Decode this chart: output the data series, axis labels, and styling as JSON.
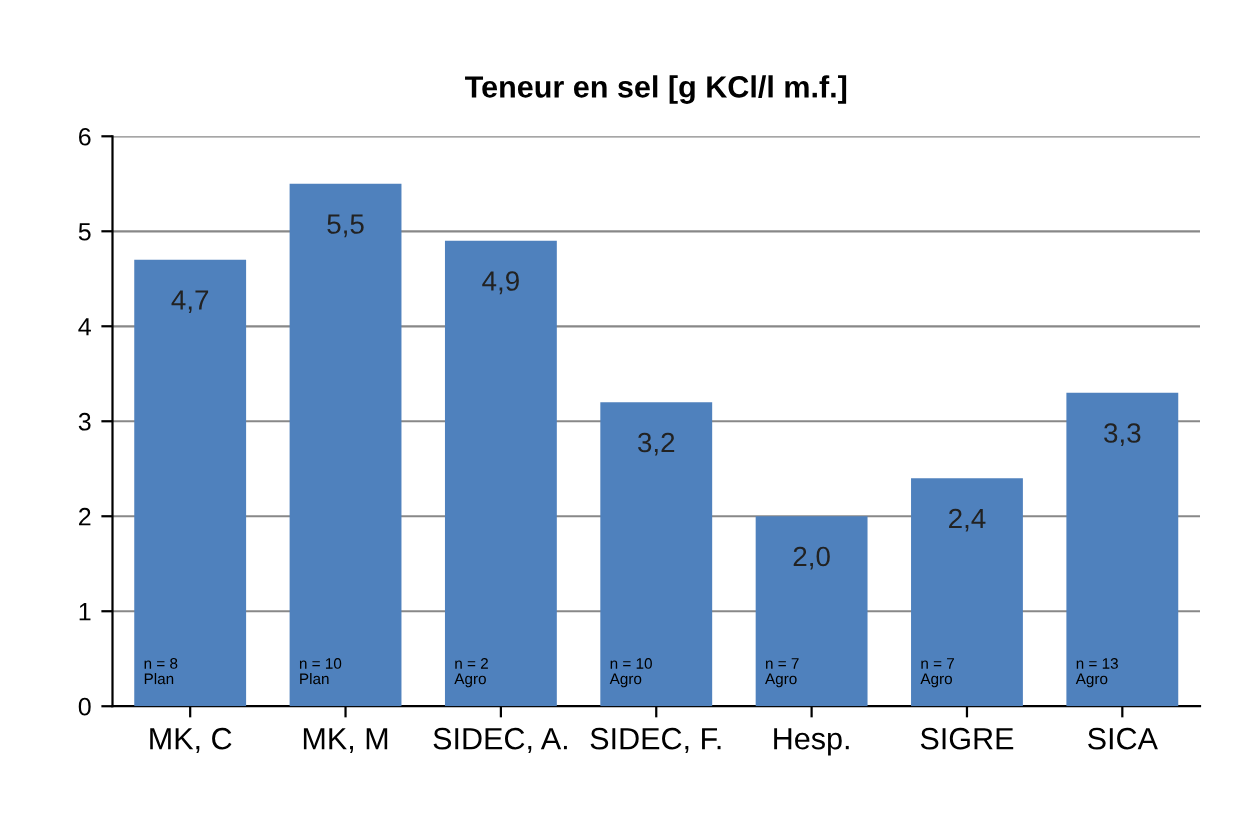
{
  "chart_data": {
    "type": "bar",
    "title": "Teneur en sel [g KCl/l m.f.]",
    "categories": [
      "MK, C",
      "MK, M",
      "SIDEC, A.",
      "SIDEC, F.",
      "Hesp.",
      "SIGRE",
      "SICA"
    ],
    "values": [
      4.7,
      5.5,
      4.9,
      3.2,
      2.0,
      2.4,
      3.3
    ],
    "value_labels": [
      "4,7",
      "5,5",
      "4,9",
      "3,2",
      "2,0",
      "2,4",
      "3,3"
    ],
    "color": "#4f81bd",
    "ylim": [
      0,
      6
    ],
    "yticks": [
      0,
      1,
      2,
      3,
      4,
      5,
      6
    ],
    "grid": "y",
    "annotations": [
      "n = 8\nPlan",
      "n = 10\nPlan",
      "n = 2\nAgro",
      "n = 10\nAgro",
      "n = 7\nAgro",
      "n = 7\nAgro",
      "n = 13\nAgro"
    ]
  }
}
